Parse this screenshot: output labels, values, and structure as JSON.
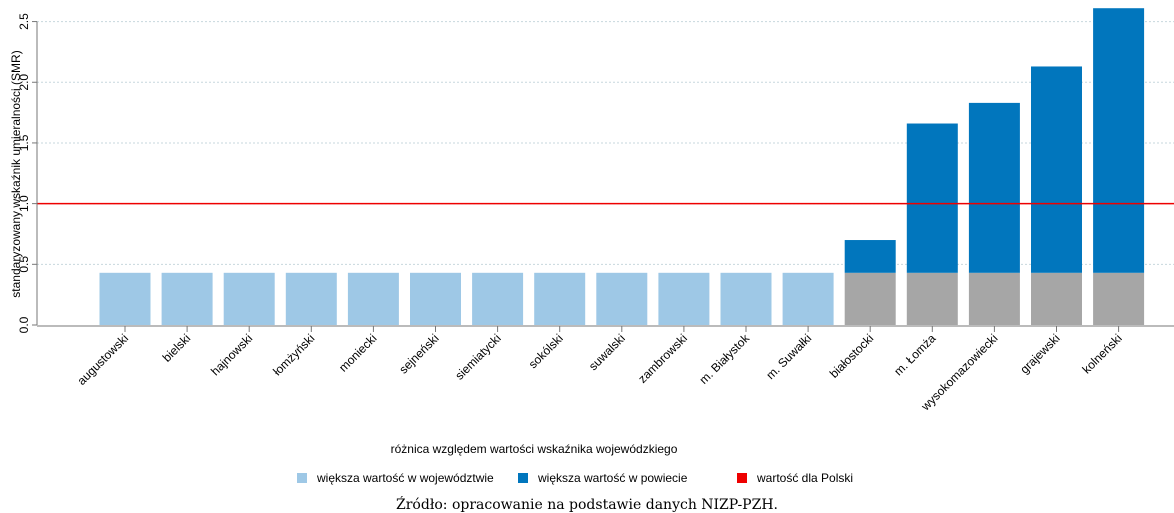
{
  "chart_data": {
    "type": "bar",
    "stacked": true,
    "categories": [
      "augustowski",
      "bielski",
      "hajnowski",
      "łomżyński",
      "moniecki",
      "sejneński",
      "siemiatycki",
      "sokólski",
      "suwalski",
      "zambrowski",
      "m. Białystok",
      "m. Suwałki",
      "białostocki",
      "m. Łomża",
      "wysokomazowiecki",
      "grajewski",
      "kolneński"
    ],
    "base_values": [
      0.43,
      0.43,
      0.43,
      0.43,
      0.43,
      0.43,
      0.43,
      0.43,
      0.43,
      0.43,
      0.43,
      0.43,
      0.43,
      0.43,
      0.43,
      0.43,
      0.43
    ],
    "totals": [
      0.43,
      0.43,
      0.43,
      0.43,
      0.43,
      0.43,
      0.43,
      0.43,
      0.43,
      0.43,
      0.43,
      0.43,
      0.7,
      1.66,
      1.83,
      2.13,
      2.61
    ],
    "reference_line": {
      "value": 1.0,
      "color": "#ee0000"
    },
    "ylabel": "standaryzowany wskaźnik umieralności (SMR)",
    "xlabel": "różnica względem wartości wskaźnika wojewódzkiego",
    "ylim": [
      0,
      2.62
    ],
    "yticks": [
      "0.0",
      "0.5",
      "1.0",
      "1.5",
      "2.0",
      "2.5"
    ],
    "ytick_values": [
      0,
      0.5,
      1.0,
      1.5,
      2.0,
      2.5
    ],
    "grid": true,
    "legend": [
      {
        "label": "większa wartość w województwie",
        "color": "#9ec8e6"
      },
      {
        "label": "większa wartość w powiecie",
        "color": "#0176bd"
      },
      {
        "label": "wartość dla Polski",
        "color": "#ee0000"
      }
    ],
    "legend_position": "bottom",
    "colors": {
      "light": "#9ec8e6",
      "dark": "#0176bd",
      "base_grey": "#a6a6a6",
      "grid": "#c7d7dd",
      "axis": "#777777"
    }
  },
  "source": "Źródło: opracowanie na podstawie danych NIZP-PZH."
}
